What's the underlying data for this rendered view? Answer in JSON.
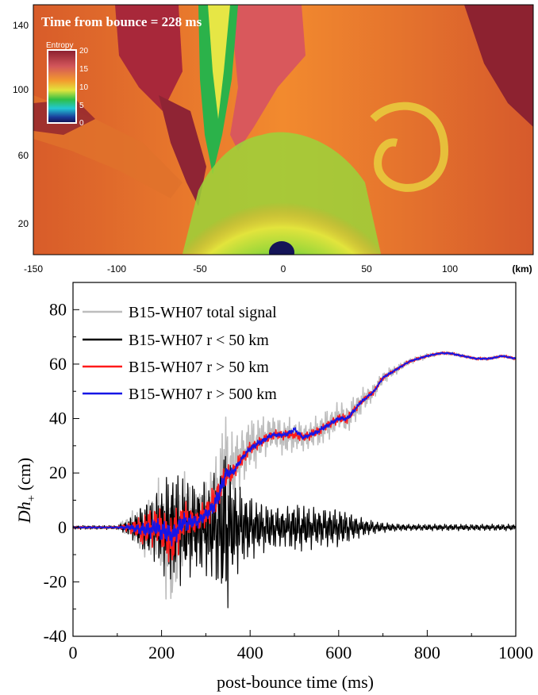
{
  "top_panel": {
    "annotation": "Time from bounce = 228 ms",
    "colorbar": {
      "title": "Entropy",
      "ticks": [
        "20",
        "15",
        "10",
        "5",
        "0"
      ],
      "colors": [
        "#8a1e2e",
        "#d2555a",
        "#f39a2e",
        "#e2e43c",
        "#2fbf47",
        "#22c7d4",
        "#1a3c9a",
        "#101050"
      ]
    },
    "xticks": [
      "-150",
      "-100",
      "-50",
      "0",
      "50",
      "100",
      "(km)"
    ],
    "yticks": [
      "140",
      "100",
      "60",
      "20"
    ]
  },
  "chart_data": {
    "type": "line",
    "xlabel": "post-bounce time (ms)",
    "ylabel_main": "Dh",
    "ylabel_sub": "+",
    "ylabel_unit": " (cm)",
    "xlim": [
      0,
      1000
    ],
    "ylim": [
      -40,
      90
    ],
    "xticks": [
      0,
      200,
      400,
      600,
      800,
      1000
    ],
    "yticks": [
      -40,
      -20,
      0,
      20,
      40,
      60,
      80
    ],
    "legend_position": "top-left",
    "series": [
      {
        "name": "B15-WH07 total signal",
        "color": "#bdbdbd",
        "x": [
          0,
          100,
          130,
          160,
          190,
          210,
          225,
          250,
          280,
          310,
          330,
          345,
          360,
          380,
          400,
          420,
          450,
          480,
          500,
          520,
          550,
          580,
          600,
          620,
          650,
          680,
          700,
          730,
          760,
          800,
          830,
          850,
          880,
          910,
          940,
          970,
          1000
        ],
        "y": [
          0,
          0,
          1,
          -2,
          3,
          -6,
          -10,
          4,
          2,
          8,
          15,
          22,
          20,
          26,
          30,
          32,
          35,
          33,
          34,
          33,
          35,
          38,
          41,
          40,
          46,
          50,
          55,
          58,
          61,
          63,
          64,
          64,
          63,
          62,
          62,
          63,
          62
        ],
        "noise": [
          0.5,
          0.5,
          4,
          9,
          12,
          18,
          22,
          14,
          10,
          12,
          14,
          18,
          14,
          10,
          9,
          7,
          6,
          6,
          5,
          5,
          5,
          5,
          5,
          5,
          4,
          3,
          2,
          1.5,
          1,
          0.8,
          0.6,
          0.6,
          0.5,
          0.5,
          0.5,
          0.5,
          0.5
        ]
      },
      {
        "name": "B15-WH07 r < 50 km",
        "color": "#000000",
        "x": [
          0,
          100,
          130,
          160,
          190,
          210,
          225,
          250,
          280,
          310,
          330,
          345,
          360,
          380,
          400,
          420,
          450,
          480,
          500,
          520,
          550,
          580,
          600,
          620,
          650,
          680,
          700,
          730,
          760,
          800,
          830,
          850,
          880,
          910,
          940,
          970,
          1000
        ],
        "y": [
          0,
          0,
          0,
          0,
          0,
          0,
          0,
          0,
          0,
          0,
          0,
          0,
          0,
          0,
          0,
          0,
          0,
          0,
          0,
          0,
          0,
          0,
          0,
          0,
          0,
          0,
          0,
          0,
          0,
          0,
          0,
          0,
          0,
          0,
          0,
          0,
          0
        ],
        "noise": [
          0.6,
          0.6,
          3,
          8,
          11,
          16,
          18,
          16,
          14,
          16,
          20,
          28,
          16,
          12,
          10,
          8,
          7,
          6,
          8,
          7,
          6,
          6,
          6,
          5,
          3,
          2,
          1.5,
          1.2,
          1,
          1,
          1,
          1,
          1,
          1,
          1,
          1,
          1
        ]
      },
      {
        "name": "B15-WH07 r > 50 km",
        "color": "#ff1a1a",
        "x": [
          0,
          100,
          130,
          160,
          190,
          210,
          225,
          250,
          280,
          310,
          330,
          345,
          360,
          380,
          400,
          420,
          450,
          480,
          500,
          520,
          550,
          580,
          600,
          620,
          650,
          680,
          700,
          730,
          760,
          800,
          830,
          850,
          880,
          910,
          940,
          970,
          1000
        ],
        "y": [
          0,
          0,
          0,
          -1,
          1,
          -3,
          -5,
          3,
          2,
          7,
          13,
          19,
          20,
          25,
          29,
          31,
          34,
          34,
          34,
          33,
          35,
          38,
          40,
          40,
          46,
          50,
          55,
          58,
          61,
          63,
          64,
          64,
          63,
          62,
          62,
          63,
          62
        ],
        "noise": [
          0.3,
          0.3,
          2,
          5,
          7,
          8,
          9,
          6,
          4,
          5,
          5,
          4,
          3,
          2.5,
          2,
          2,
          1.5,
          1.5,
          1.5,
          1.5,
          1.5,
          1.5,
          1.5,
          1.5,
          1,
          1,
          0.8,
          0.6,
          0.5,
          0.5,
          0.4,
          0.4,
          0.4,
          0.4,
          0.4,
          0.4,
          0.4
        ]
      },
      {
        "name": "B15-WH07 r > 500 km",
        "color": "#1515e6",
        "x": [
          0,
          100,
          130,
          160,
          190,
          210,
          225,
          250,
          280,
          310,
          330,
          345,
          360,
          380,
          400,
          420,
          450,
          480,
          500,
          520,
          550,
          580,
          600,
          620,
          650,
          680,
          700,
          730,
          760,
          800,
          830,
          850,
          880,
          910,
          940,
          970,
          1000
        ],
        "y": [
          0,
          0,
          0,
          -1,
          0,
          -2,
          -3,
          2,
          2,
          6,
          12,
          20,
          20,
          25,
          29,
          31,
          34,
          34,
          36,
          33,
          35,
          38,
          40,
          40,
          46,
          50,
          55,
          58,
          61,
          63,
          64,
          64,
          63,
          62,
          62,
          63,
          62
        ],
        "noise": [
          0.2,
          0.2,
          1,
          2.5,
          3,
          4,
          4,
          3,
          2,
          2.5,
          3,
          2,
          1.5,
          1,
          1,
          1,
          0.8,
          0.8,
          0.8,
          0.8,
          0.8,
          0.8,
          0.8,
          0.8,
          0.6,
          0.5,
          0.4,
          0.4,
          0.3,
          0.3,
          0.3,
          0.3,
          0.3,
          0.3,
          0.3,
          0.3,
          0.3
        ]
      }
    ]
  }
}
